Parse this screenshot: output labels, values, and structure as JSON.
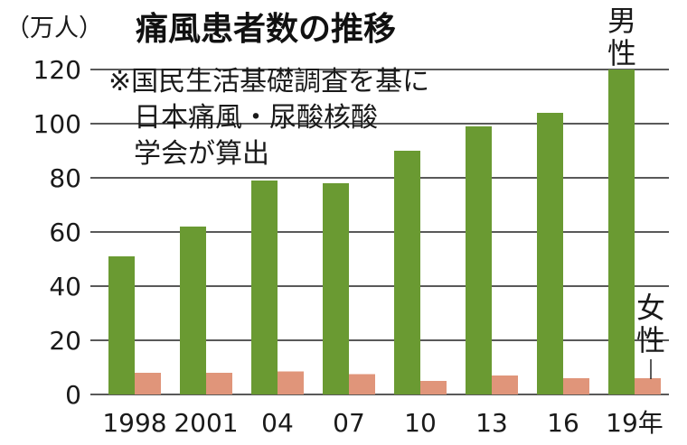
{
  "chart_data": {
    "type": "bar",
    "title": "痛風患者数の推移",
    "unit_label": "（万人）",
    "note": [
      "※国民生活基礎調査を基に",
      "日本痛風・尿酸核酸",
      "学会が算出"
    ],
    "categories": [
      "1998",
      "2001",
      "04",
      "07",
      "10",
      "13",
      "16",
      "19年"
    ],
    "series": [
      {
        "name": "男性",
        "color": "#6a9a32",
        "values": [
          51,
          62,
          79,
          78,
          90,
          99,
          104,
          120
        ]
      },
      {
        "name": "女性",
        "color": "#e0957a",
        "values": [
          8,
          8,
          8.5,
          7.5,
          5,
          7,
          6,
          6
        ]
      }
    ],
    "ylim": [
      0,
      120
    ],
    "yticks": [
      0,
      20,
      40,
      60,
      80,
      100,
      120
    ],
    "grid": true
  }
}
